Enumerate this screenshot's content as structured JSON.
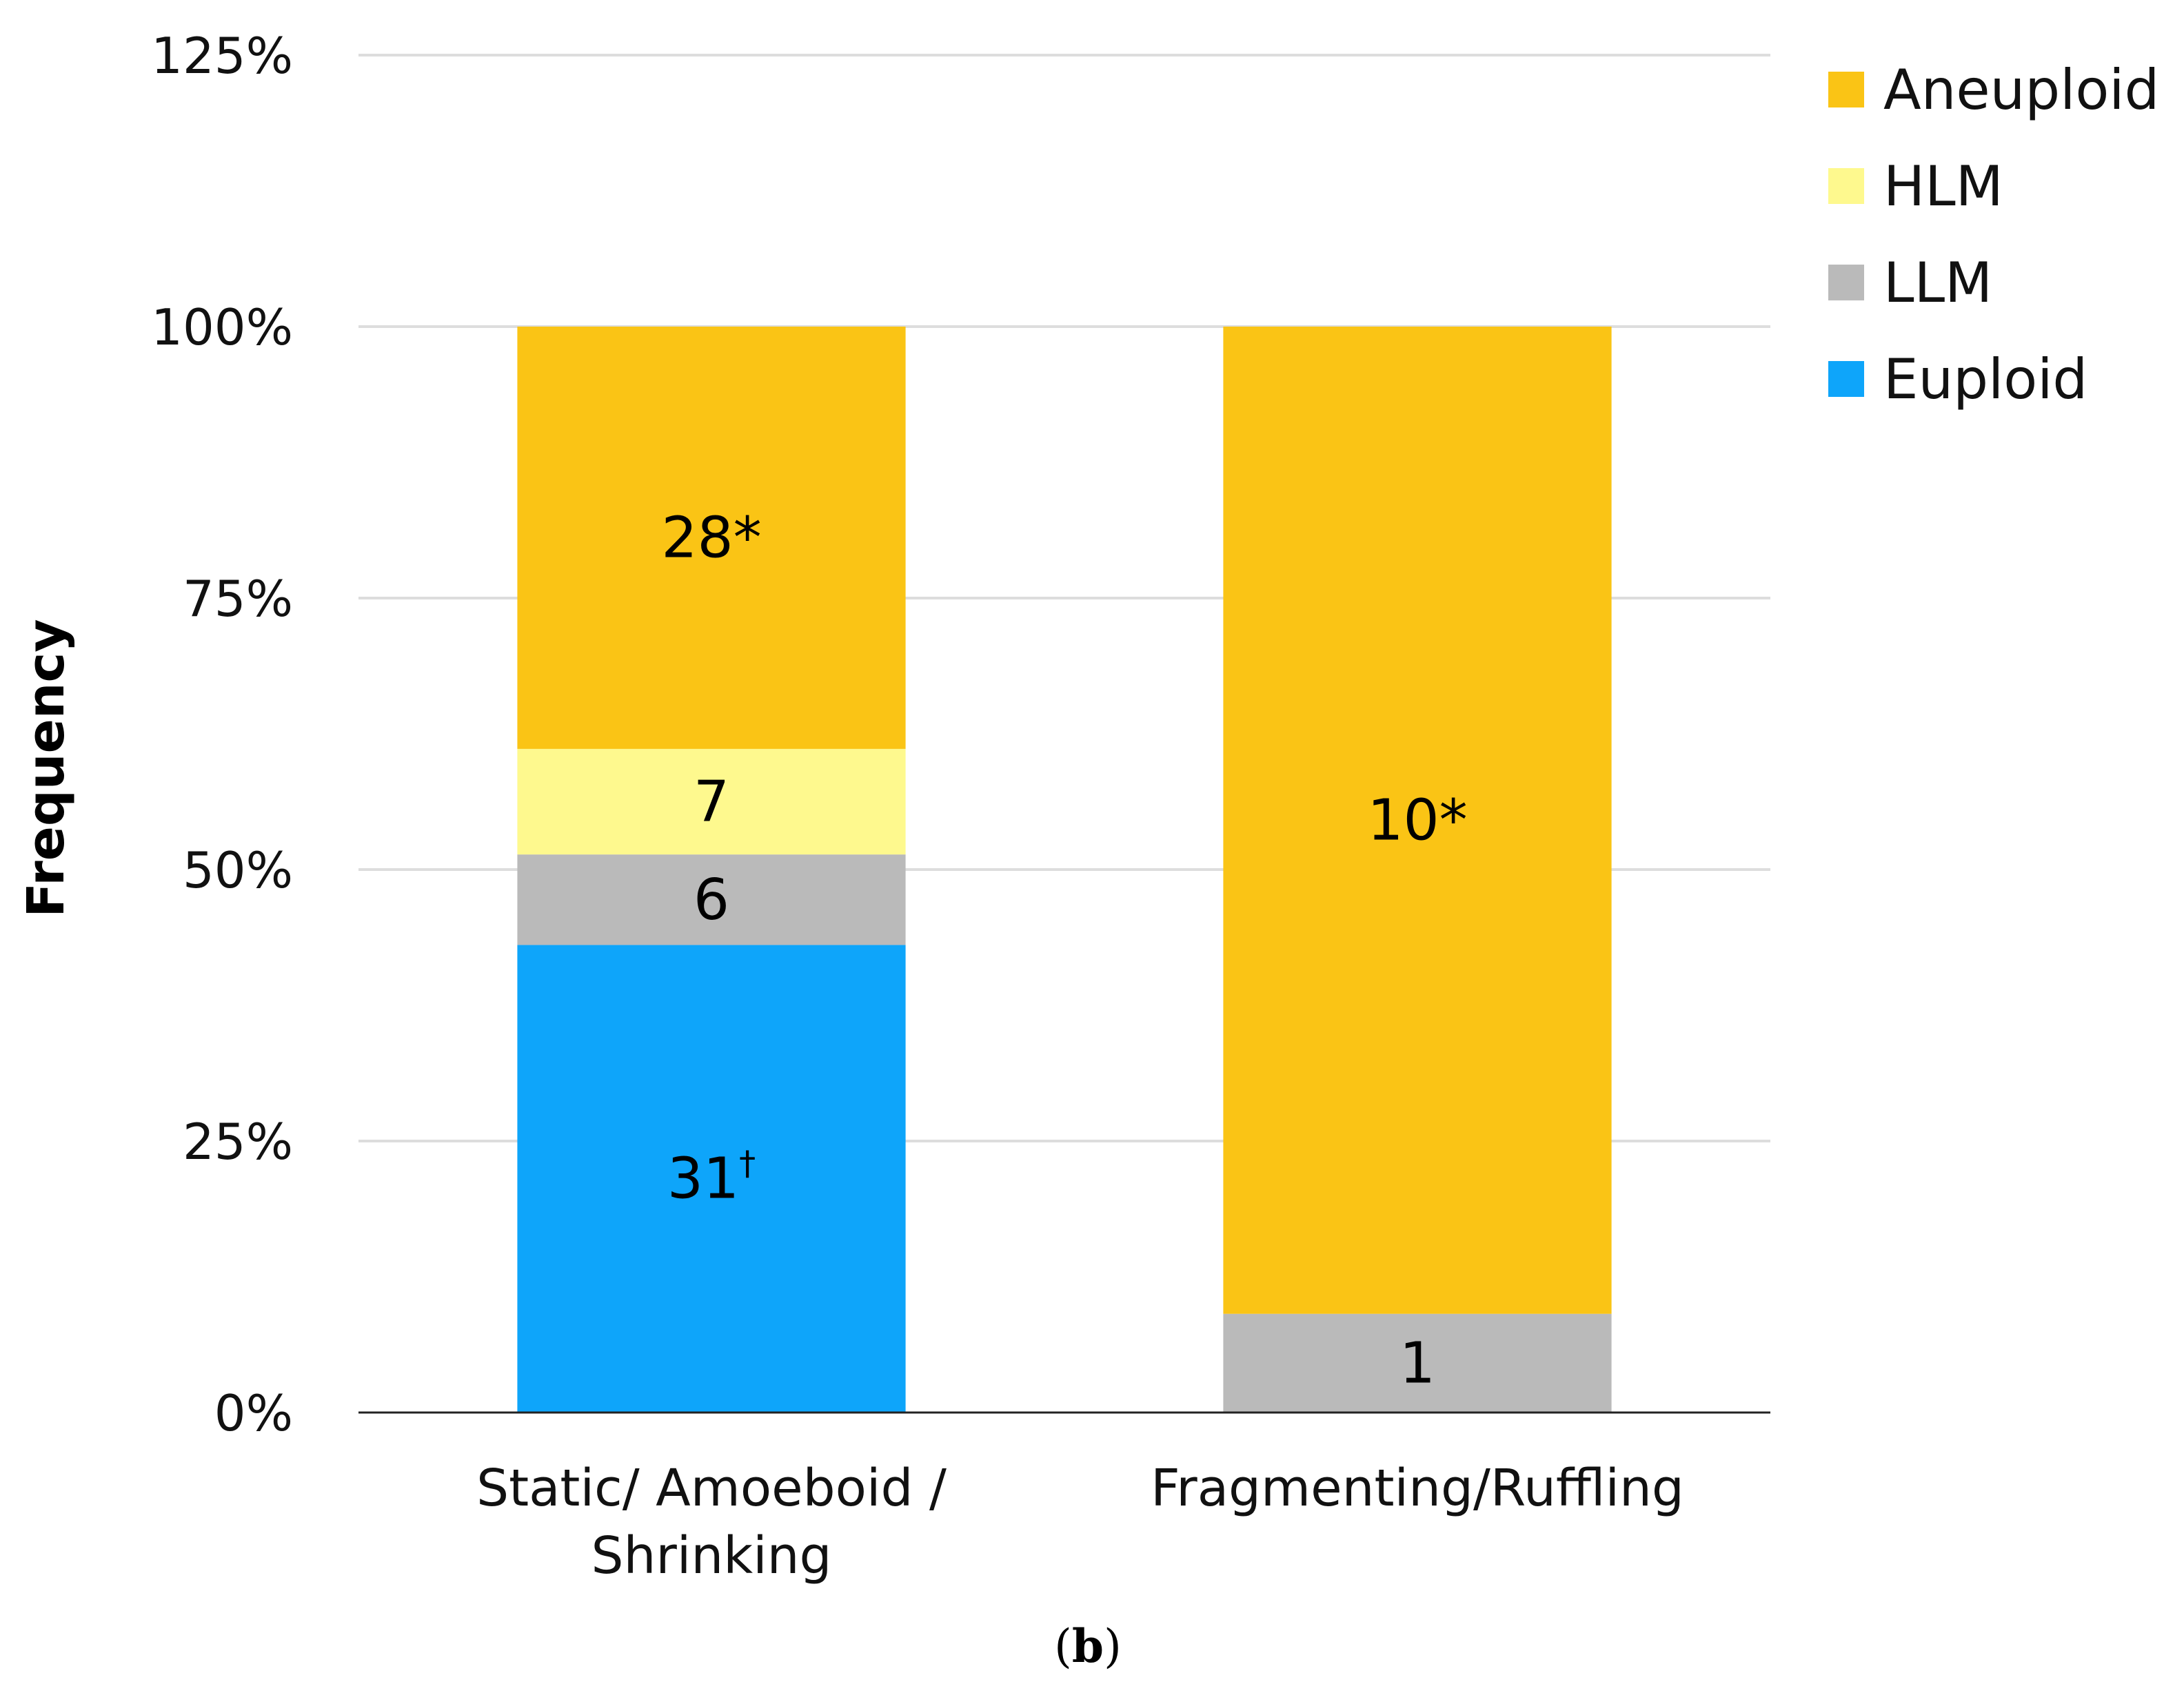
{
  "chart_data": {
    "type": "bar",
    "stacked": true,
    "percent_stacked": true,
    "title": "",
    "xlabel": "",
    "ylabel": "Frequency",
    "ylim": [
      0,
      125
    ],
    "yticks": [
      "0%",
      "25%",
      "50%",
      "75%",
      "100%",
      "125%"
    ],
    "yticks_values": [
      0,
      25,
      50,
      75,
      100,
      125
    ],
    "categories": [
      {
        "lines": [
          "Static/ Amoeboid /",
          "Shrinking"
        ]
      },
      {
        "lines": [
          "Fragmenting/Ruffling"
        ]
      }
    ],
    "series": [
      {
        "name": "Euploid",
        "color": "#0EA5FA",
        "values": [
          31,
          0
        ],
        "labels": [
          {
            "text": "31",
            "sup": "†"
          },
          null
        ]
      },
      {
        "name": "LLM",
        "color": "#BABABA",
        "values": [
          6,
          1
        ],
        "labels": [
          {
            "text": "6",
            "sup": ""
          },
          {
            "text": "1",
            "sup": ""
          }
        ]
      },
      {
        "name": "HLM",
        "color": "#FEF98E",
        "values": [
          7,
          0
        ],
        "labels": [
          {
            "text": "7",
            "sup": ""
          },
          null
        ]
      },
      {
        "name": "Aneuploid",
        "color": "#FAC415",
        "values": [
          28,
          10
        ],
        "labels": [
          {
            "text": "28*",
            "sup": ""
          },
          {
            "text": "10*",
            "sup": ""
          }
        ]
      }
    ],
    "legend": {
      "position": "top-right",
      "order": [
        "Aneuploid",
        "HLM",
        "LLM",
        "Euploid"
      ]
    },
    "grid": true
  },
  "caption": {
    "open": "(",
    "bold": "b",
    "close": ")"
  }
}
